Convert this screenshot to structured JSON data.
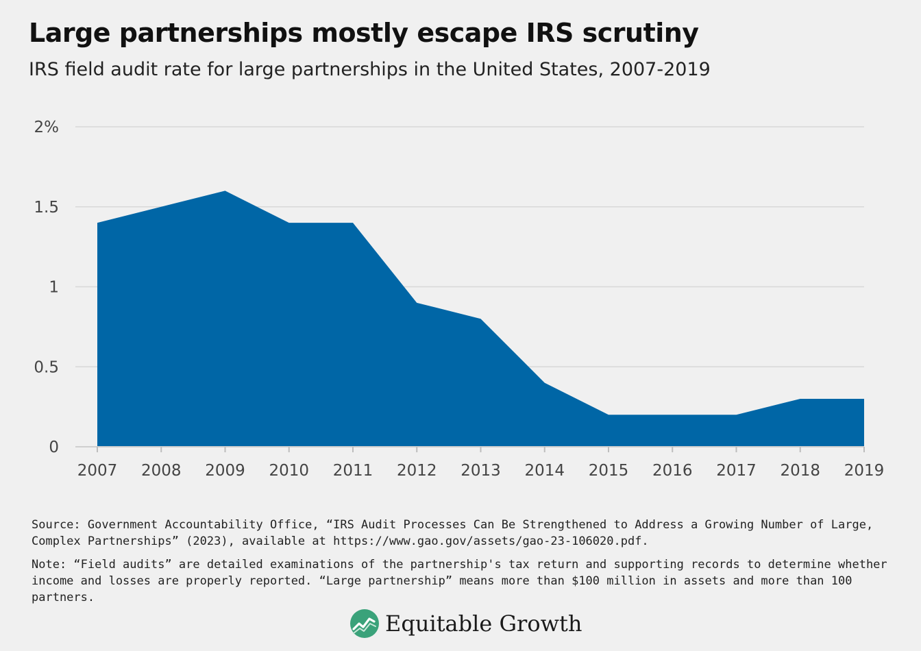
{
  "title": "Large partnerships mostly escape IRS scrutiny",
  "subtitle": "IRS field audit rate for large partnerships in the United States, 2007-2019",
  "footer": {
    "source": "Source: Government Accountability Office, “IRS Audit Processes Can Be Strengthened to Address a Growing Number of Large, Complex Partnerships” (2023), available at https://www.gao.gov/assets/gao-23-106020.pdf.",
    "note": "Note: “Field audits” are detailed examinations of the partnership's tax return and supporting records to determine whether income and losses are properly reported. “Large partnership” means more than $100 million in assets and more than 100 partners.",
    "brand": "Equitable Growth",
    "brand_icon": "equitable-growth-logo-icon"
  },
  "colors": {
    "area": "#0066a6",
    "gridline": "#d8d8d8",
    "logo_green": "#3aa27a"
  },
  "chart_data": {
    "type": "area",
    "title": "Large partnerships mostly escape IRS scrutiny",
    "subtitle": "IRS field audit rate for large partnerships in the United States, 2007-2019",
    "xlabel": "",
    "ylabel": "",
    "x": [
      "2007",
      "2008",
      "2009",
      "2010",
      "2011",
      "2012",
      "2013",
      "2014",
      "2015",
      "2016",
      "2017",
      "2018",
      "2019"
    ],
    "values": [
      1.4,
      1.5,
      1.6,
      1.4,
      1.4,
      0.9,
      0.8,
      0.4,
      0.2,
      0.2,
      0.2,
      0.3,
      0.3
    ],
    "ylim": [
      0,
      2
    ],
    "yticks": [
      0,
      0.5,
      1,
      1.5,
      2
    ],
    "ytick_labels": [
      "0",
      "0.5",
      "1",
      "1.5",
      "2%"
    ],
    "grid": true,
    "legend": "none"
  }
}
